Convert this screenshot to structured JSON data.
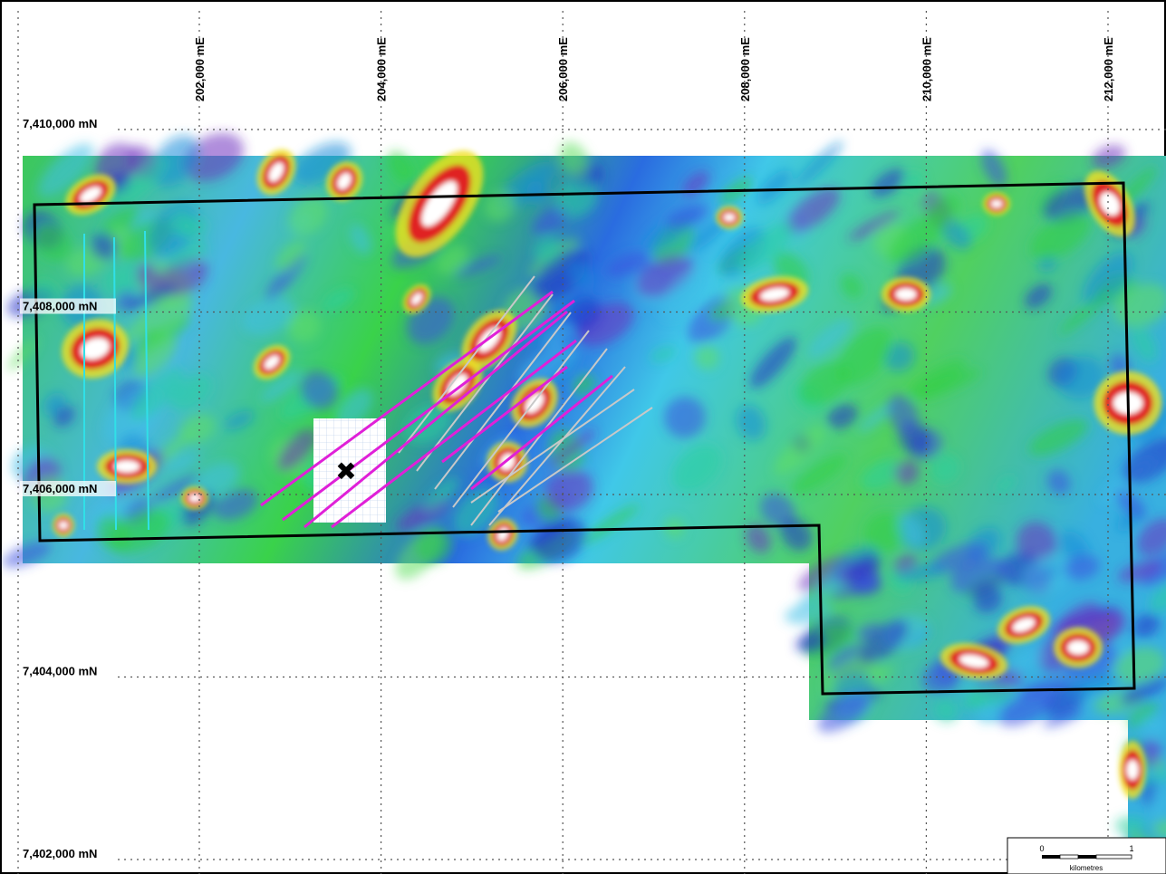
{
  "map": {
    "easting_labels": [
      "202,000 mE",
      "204,000 mE",
      "206,000 mE",
      "208,000 mE",
      "210,000 mE",
      "212,000 mE"
    ],
    "northing_labels": [
      "7,410,000 mN",
      "7,408,000 mN",
      "7,406,000 mN",
      "7,404,000 mN",
      "7,402,000 mN"
    ],
    "easting_values": [
      202000,
      204000,
      206000,
      208000,
      210000,
      212000
    ],
    "northing_values": [
      7410000,
      7408000,
      7406000,
      7404000,
      7402000
    ],
    "target_marker": "✖",
    "scale_bar": {
      "min_label": "0",
      "max_label": "1",
      "unit_label": "kilometres"
    },
    "colors": {
      "grid": "#555555",
      "tenement_boundary": "#000000",
      "survey_lines_primary": "#e020d8",
      "survey_lines_secondary": "#c8c8c8",
      "flight_lines": "#30e0e8",
      "magnetic_high": "#e02020",
      "magnetic_mid": "#30d020",
      "magnetic_low": "#2030d0"
    }
  }
}
